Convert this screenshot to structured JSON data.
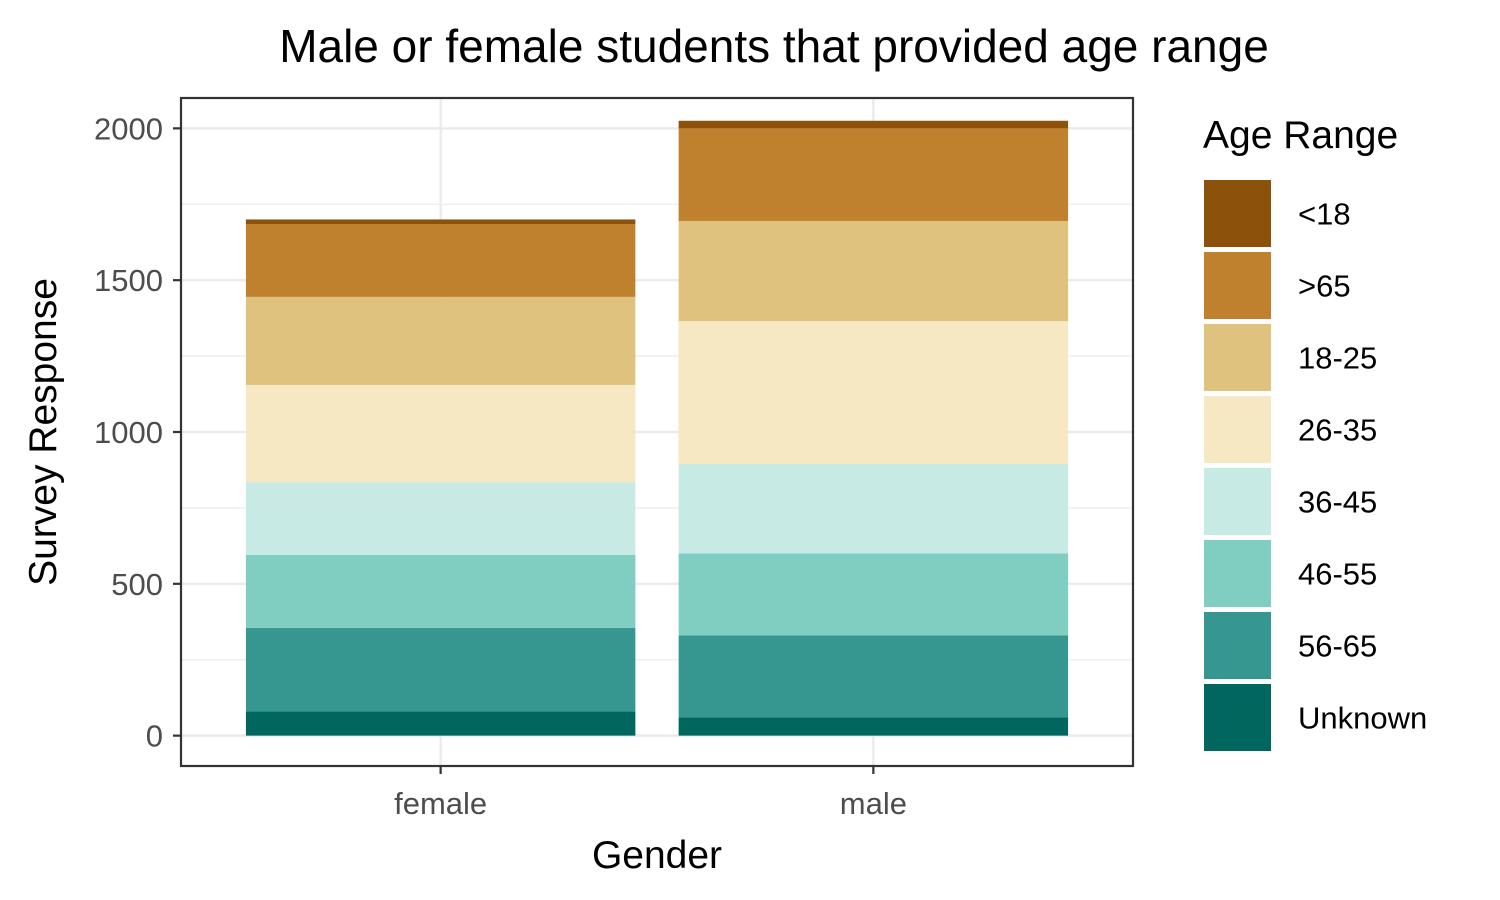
{
  "chart_data": {
    "type": "bar",
    "stacked": true,
    "title": "Male or female students that provided age range",
    "xlabel": "Gender",
    "ylabel": "Survey Response",
    "categories": [
      "female",
      "male"
    ],
    "ylim": [
      -100,
      2100
    ],
    "yticks": [
      0,
      500,
      1000,
      1500,
      2000
    ],
    "grid": true,
    "legend": {
      "title": "Age Range",
      "position": "right"
    },
    "series": [
      {
        "name": "<18",
        "color": "#8c510a",
        "values": [
          15,
          25
        ]
      },
      {
        "name": ">65",
        "color": "#bf812d",
        "values": [
          240,
          305
        ]
      },
      {
        "name": "18-25",
        "color": "#dfc27d",
        "values": [
          290,
          330
        ]
      },
      {
        "name": "26-35",
        "color": "#f6e8c3",
        "values": [
          320,
          470
        ]
      },
      {
        "name": "36-45",
        "color": "#c7eae5",
        "values": [
          240,
          295
        ]
      },
      {
        "name": "46-55",
        "color": "#80cdc1",
        "values": [
          240,
          270
        ]
      },
      {
        "name": "56-65",
        "color": "#35978f",
        "values": [
          275,
          270
        ]
      },
      {
        "name": "Unknown",
        "color": "#01665e",
        "values": [
          80,
          60
        ]
      }
    ]
  }
}
